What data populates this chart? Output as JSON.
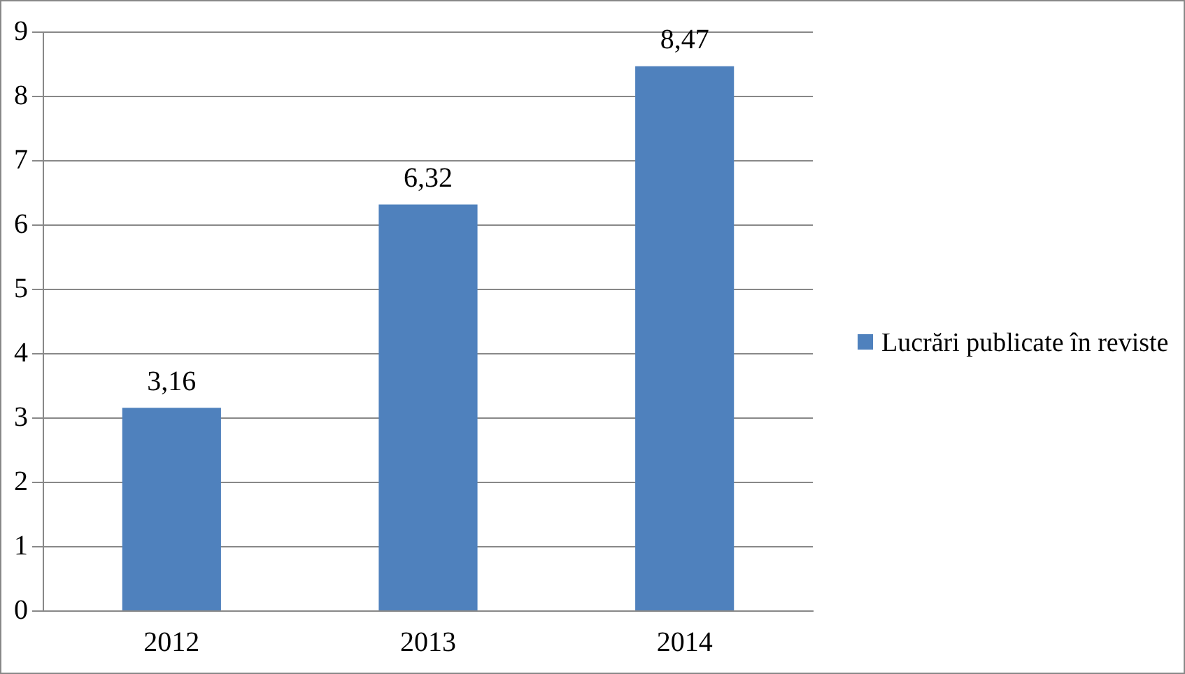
{
  "chart_data": {
    "type": "bar",
    "categories": [
      "2012",
      "2013",
      "2014"
    ],
    "series": [
      {
        "name": "Lucrări publicate în reviste",
        "color": "#4f81bd",
        "values": [
          3.16,
          6.32,
          8.47
        ],
        "value_labels": [
          "3,16",
          "6,32",
          "8,47"
        ]
      }
    ],
    "ylim": [
      0,
      9
    ],
    "yticks": [
      0,
      1,
      2,
      3,
      4,
      5,
      6,
      7,
      8,
      9
    ],
    "grid": "y",
    "legend": "right"
  }
}
